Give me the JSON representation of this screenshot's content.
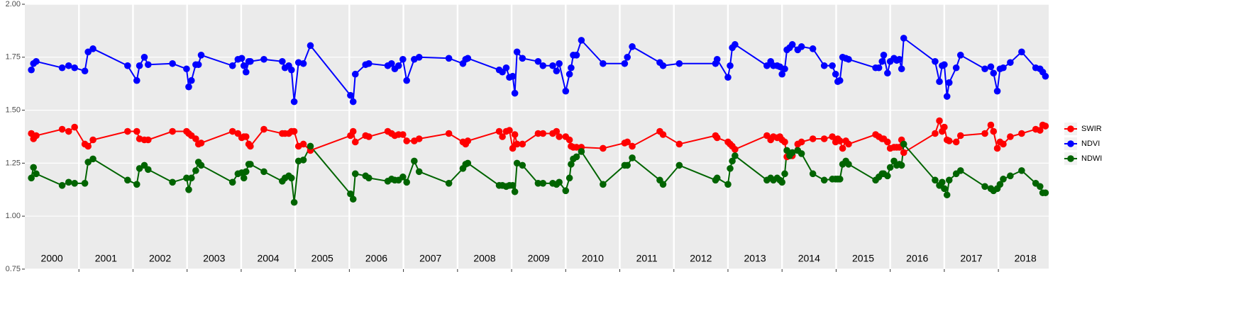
{
  "chart_data": {
    "type": "line",
    "x": [
      2000.12,
      2000.16,
      2000.21,
      2000.69,
      2000.81,
      2000.92,
      2001.11,
      2001.17,
      2001.26,
      2001.9,
      2002.07,
      2002.12,
      2002.21,
      2002.28,
      2002.73,
      2002.99,
      2003.03,
      2003.08,
      2003.16,
      2003.21,
      2003.26,
      2003.84,
      2003.94,
      2004.01,
      2004.05,
      2004.09,
      2004.14,
      2004.17,
      2004.42,
      2004.76,
      2004.81,
      2004.88,
      2004.93,
      2004.98,
      2005.06,
      2005.15,
      2005.28,
      2006.02,
      2006.07,
      2006.11,
      2006.3,
      2006.36,
      2006.71,
      2006.78,
      2006.84,
      2006.91,
      2006.99,
      2007.06,
      2007.2,
      2007.29,
      2007.84,
      2008.1,
      2008.15,
      2008.19,
      2008.77,
      2008.83,
      2008.9,
      2008.96,
      2009.02,
      2009.06,
      2009.1,
      2009.2,
      2009.49,
      2009.58,
      2009.76,
      2009.83,
      2009.88,
      2010.0,
      2010.07,
      2010.1,
      2010.14,
      2010.2,
      2010.29,
      2010.69,
      2011.09,
      2011.14,
      2011.23,
      2011.74,
      2011.8,
      2012.1,
      2012.77,
      2012.8,
      2013.0,
      2013.04,
      2013.08,
      2013.13,
      2013.72,
      2013.79,
      2013.84,
      2013.91,
      2013.96,
      2014.0,
      2014.05,
      2014.09,
      2014.14,
      2014.19,
      2014.29,
      2014.36,
      2014.57,
      2014.78,
      2014.93,
      2014.99,
      2015.03,
      2015.07,
      2015.12,
      2015.18,
      2015.23,
      2015.73,
      2015.79,
      2015.85,
      2015.88,
      2015.95,
      2016.0,
      2016.07,
      2016.12,
      2016.17,
      2016.21,
      2016.25,
      2016.83,
      2016.91,
      2016.96,
      2017.0,
      2017.05,
      2017.09,
      2017.22,
      2017.3,
      2017.75,
      2017.86,
      2017.91,
      2017.98,
      2018.03,
      2018.09,
      2018.22,
      2018.43,
      2018.69,
      2018.77,
      2018.82,
      2018.87
    ],
    "series": [
      {
        "name": "SWIR",
        "color": "#ff0000",
        "values": [
          1.39,
          1.365,
          1.38,
          1.41,
          1.4,
          1.42,
          1.34,
          1.33,
          1.36,
          1.4,
          1.4,
          1.365,
          1.36,
          1.36,
          1.4,
          1.4,
          1.39,
          1.38,
          1.365,
          1.34,
          1.345,
          1.4,
          1.39,
          1.37,
          1.375,
          1.375,
          1.34,
          1.33,
          1.41,
          1.39,
          1.39,
          1.39,
          1.4,
          1.4,
          1.33,
          1.34,
          1.31,
          1.38,
          1.4,
          1.35,
          1.38,
          1.375,
          1.4,
          1.39,
          1.38,
          1.385,
          1.385,
          1.355,
          1.355,
          1.365,
          1.39,
          1.35,
          1.34,
          1.355,
          1.4,
          1.375,
          1.4,
          1.405,
          1.32,
          1.385,
          1.34,
          1.34,
          1.39,
          1.39,
          1.39,
          1.4,
          1.375,
          1.375,
          1.36,
          1.33,
          1.325,
          1.325,
          1.325,
          1.32,
          1.345,
          1.35,
          1.33,
          1.4,
          1.385,
          1.34,
          1.38,
          1.37,
          1.35,
          1.34,
          1.33,
          1.315,
          1.38,
          1.36,
          1.375,
          1.37,
          1.375,
          1.36,
          1.35,
          1.28,
          1.285,
          1.285,
          1.34,
          1.35,
          1.365,
          1.365,
          1.375,
          1.35,
          1.365,
          1.355,
          1.32,
          1.355,
          1.34,
          1.385,
          1.375,
          1.365,
          1.365,
          1.35,
          1.32,
          1.325,
          1.325,
          1.325,
          1.36,
          1.3,
          1.39,
          1.45,
          1.4,
          1.42,
          1.36,
          1.355,
          1.35,
          1.38,
          1.39,
          1.43,
          1.4,
          1.32,
          1.35,
          1.34,
          1.375,
          1.39,
          1.41,
          1.405,
          1.43,
          1.425
        ]
      },
      {
        "name": "NDVI",
        "color": "#0000ff",
        "values": [
          1.69,
          1.72,
          1.73,
          1.7,
          1.71,
          1.7,
          1.685,
          1.775,
          1.79,
          1.71,
          1.64,
          1.71,
          1.75,
          1.715,
          1.72,
          1.695,
          1.61,
          1.64,
          1.715,
          1.715,
          1.76,
          1.71,
          1.74,
          1.745,
          1.71,
          1.68,
          1.73,
          1.73,
          1.74,
          1.73,
          1.7,
          1.71,
          1.69,
          1.54,
          1.725,
          1.72,
          1.805,
          1.57,
          1.54,
          1.67,
          1.715,
          1.72,
          1.71,
          1.72,
          1.695,
          1.71,
          1.74,
          1.64,
          1.74,
          1.75,
          1.745,
          1.72,
          1.74,
          1.745,
          1.69,
          1.68,
          1.7,
          1.655,
          1.66,
          1.58,
          1.775,
          1.745,
          1.73,
          1.71,
          1.71,
          1.685,
          1.72,
          1.59,
          1.67,
          1.7,
          1.76,
          1.76,
          1.83,
          1.72,
          1.72,
          1.75,
          1.8,
          1.725,
          1.71,
          1.72,
          1.72,
          1.74,
          1.655,
          1.71,
          1.795,
          1.81,
          1.71,
          1.73,
          1.71,
          1.71,
          1.705,
          1.67,
          1.695,
          1.785,
          1.795,
          1.81,
          1.785,
          1.8,
          1.79,
          1.71,
          1.71,
          1.67,
          1.635,
          1.64,
          1.75,
          1.745,
          1.74,
          1.7,
          1.7,
          1.73,
          1.76,
          1.675,
          1.73,
          1.745,
          1.735,
          1.74,
          1.695,
          1.84,
          1.73,
          1.635,
          1.71,
          1.715,
          1.565,
          1.63,
          1.7,
          1.76,
          1.695,
          1.705,
          1.675,
          1.59,
          1.695,
          1.7,
          1.725,
          1.775,
          1.7,
          1.695,
          1.68,
          1.66
        ]
      },
      {
        "name": "NDWI",
        "color": "#006400",
        "values": [
          1.18,
          1.23,
          1.2,
          1.145,
          1.16,
          1.155,
          1.155,
          1.255,
          1.27,
          1.17,
          1.15,
          1.225,
          1.24,
          1.22,
          1.16,
          1.18,
          1.125,
          1.18,
          1.215,
          1.255,
          1.24,
          1.16,
          1.2,
          1.205,
          1.18,
          1.21,
          1.245,
          1.245,
          1.21,
          1.165,
          1.18,
          1.19,
          1.18,
          1.065,
          1.26,
          1.265,
          1.33,
          1.105,
          1.08,
          1.2,
          1.19,
          1.18,
          1.165,
          1.175,
          1.17,
          1.17,
          1.185,
          1.16,
          1.26,
          1.21,
          1.155,
          1.225,
          1.245,
          1.25,
          1.145,
          1.145,
          1.14,
          1.145,
          1.145,
          1.115,
          1.25,
          1.24,
          1.155,
          1.155,
          1.155,
          1.15,
          1.16,
          1.12,
          1.18,
          1.245,
          1.27,
          1.28,
          1.305,
          1.15,
          1.24,
          1.24,
          1.275,
          1.17,
          1.15,
          1.24,
          1.17,
          1.18,
          1.15,
          1.225,
          1.26,
          1.285,
          1.17,
          1.18,
          1.17,
          1.18,
          1.17,
          1.16,
          1.2,
          1.31,
          1.285,
          1.3,
          1.31,
          1.295,
          1.2,
          1.17,
          1.175,
          1.175,
          1.175,
          1.175,
          1.245,
          1.26,
          1.245,
          1.17,
          1.185,
          1.2,
          1.2,
          1.19,
          1.23,
          1.26,
          1.24,
          1.245,
          1.24,
          1.34,
          1.17,
          1.145,
          1.16,
          1.13,
          1.1,
          1.17,
          1.2,
          1.215,
          1.14,
          1.13,
          1.12,
          1.13,
          1.15,
          1.175,
          1.19,
          1.215,
          1.155,
          1.14,
          1.11,
          1.11
        ]
      }
    ],
    "xlim": [
      2000,
      2018.93
    ],
    "xticks": [
      {
        "value": 2000.5,
        "label": "2000"
      },
      {
        "value": 2001.5,
        "label": "2001"
      },
      {
        "value": 2002.5,
        "label": "2002"
      },
      {
        "value": 2003.5,
        "label": "2003"
      },
      {
        "value": 2004.5,
        "label": "2004"
      },
      {
        "value": 2005.5,
        "label": "2005"
      },
      {
        "value": 2006.5,
        "label": "2006"
      },
      {
        "value": 2007.5,
        "label": "2007"
      },
      {
        "value": 2008.5,
        "label": "2008"
      },
      {
        "value": 2009.5,
        "label": "2009"
      },
      {
        "value": 2010.5,
        "label": "2010"
      },
      {
        "value": 2011.5,
        "label": "2011"
      },
      {
        "value": 2012.5,
        "label": "2012"
      },
      {
        "value": 2013.5,
        "label": "2013"
      },
      {
        "value": 2014.5,
        "label": "2014"
      },
      {
        "value": 2015.5,
        "label": "2015"
      },
      {
        "value": 2016.5,
        "label": "2016"
      },
      {
        "value": 2017.5,
        "label": "2017"
      },
      {
        "value": 2018.5,
        "label": "2018"
      }
    ],
    "year_boundaries": [
      2001,
      2002,
      2003,
      2004,
      2005,
      2006,
      2007,
      2008,
      2009,
      2010,
      2011,
      2012,
      2013,
      2014,
      2015,
      2016,
      2017,
      2018
    ],
    "ylim": [
      0.75,
      2.0
    ],
    "yticks": [
      {
        "value": 0.75,
        "label": "0.75"
      },
      {
        "value": 1,
        "label": "1.00"
      },
      {
        "value": 1.25,
        "label": "1.25"
      },
      {
        "value": 1.5,
        "label": "1.50"
      },
      {
        "value": 1.75,
        "label": "1.75"
      },
      {
        "value": 2,
        "label": "2.00"
      }
    ],
    "grid": true,
    "legend": "right"
  }
}
